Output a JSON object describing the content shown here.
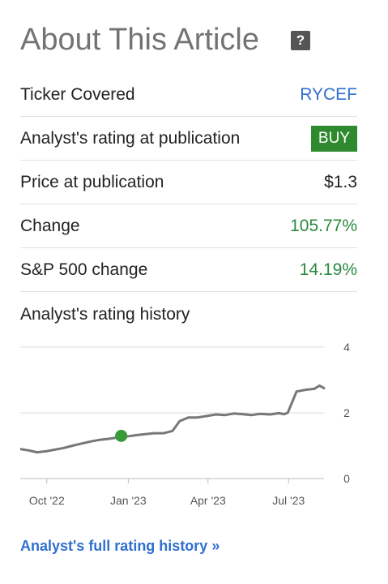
{
  "header": {
    "title": "About This Article",
    "help_label": "?"
  },
  "rows": [
    {
      "label": "Ticker Covered",
      "value": "RYCEF"
    },
    {
      "label": "Analyst's rating at publication",
      "value": "BUY"
    },
    {
      "label": "Price at publication",
      "value": "$1.3"
    },
    {
      "label": "Change",
      "value": "105.77%"
    },
    {
      "label": "S&P 500 change",
      "value": "14.19%"
    }
  ],
  "history": {
    "title": "Analyst's rating history"
  },
  "footer": {
    "link_label": "Analyst's full rating history »"
  },
  "colors": {
    "link": "#2f6fd0",
    "positive": "#2b8a3e",
    "badge": "#2f8a2f",
    "line": "#777777",
    "marker": "#3a9a3a"
  },
  "chart_data": {
    "type": "line",
    "x": [
      "2022-09-01",
      "2022-09-10",
      "2022-09-20",
      "2022-09-30",
      "2022-10-10",
      "2022-10-20",
      "2022-10-30",
      "2022-11-10",
      "2022-11-20",
      "2022-11-30",
      "2022-12-10",
      "2022-12-20",
      "2022-12-30",
      "2023-01-10",
      "2023-01-20",
      "2023-01-30",
      "2023-02-10",
      "2023-02-20",
      "2023-02-28",
      "2023-03-10",
      "2023-03-20",
      "2023-03-30",
      "2023-04-10",
      "2023-04-20",
      "2023-04-30",
      "2023-05-10",
      "2023-05-20",
      "2023-05-30",
      "2023-06-10",
      "2023-06-20",
      "2023-06-26",
      "2023-06-30",
      "2023-07-10",
      "2023-07-20",
      "2023-07-30",
      "2023-08-05",
      "2023-08-10"
    ],
    "values": [
      0.9,
      0.86,
      0.8,
      0.83,
      0.88,
      0.93,
      1.0,
      1.07,
      1.13,
      1.18,
      1.21,
      1.25,
      1.28,
      1.32,
      1.35,
      1.38,
      1.38,
      1.45,
      1.75,
      1.86,
      1.86,
      1.9,
      1.95,
      1.93,
      1.98,
      1.96,
      1.93,
      1.97,
      1.95,
      1.99,
      1.96,
      2.0,
      2.65,
      2.7,
      2.73,
      2.83,
      2.75
    ],
    "ylim": [
      0,
      4
    ],
    "yticks": [
      "0",
      "2",
      "4"
    ],
    "xticks": [
      {
        "label": "Oct '22",
        "date": "2022-10-01"
      },
      {
        "label": "Jan '23",
        "date": "2023-01-01"
      },
      {
        "label": "Apr '23",
        "date": "2023-04-01"
      },
      {
        "label": "Jul '23",
        "date": "2023-07-01"
      }
    ],
    "marker": {
      "date": "2022-12-24",
      "value": 1.3
    },
    "grid": true
  }
}
